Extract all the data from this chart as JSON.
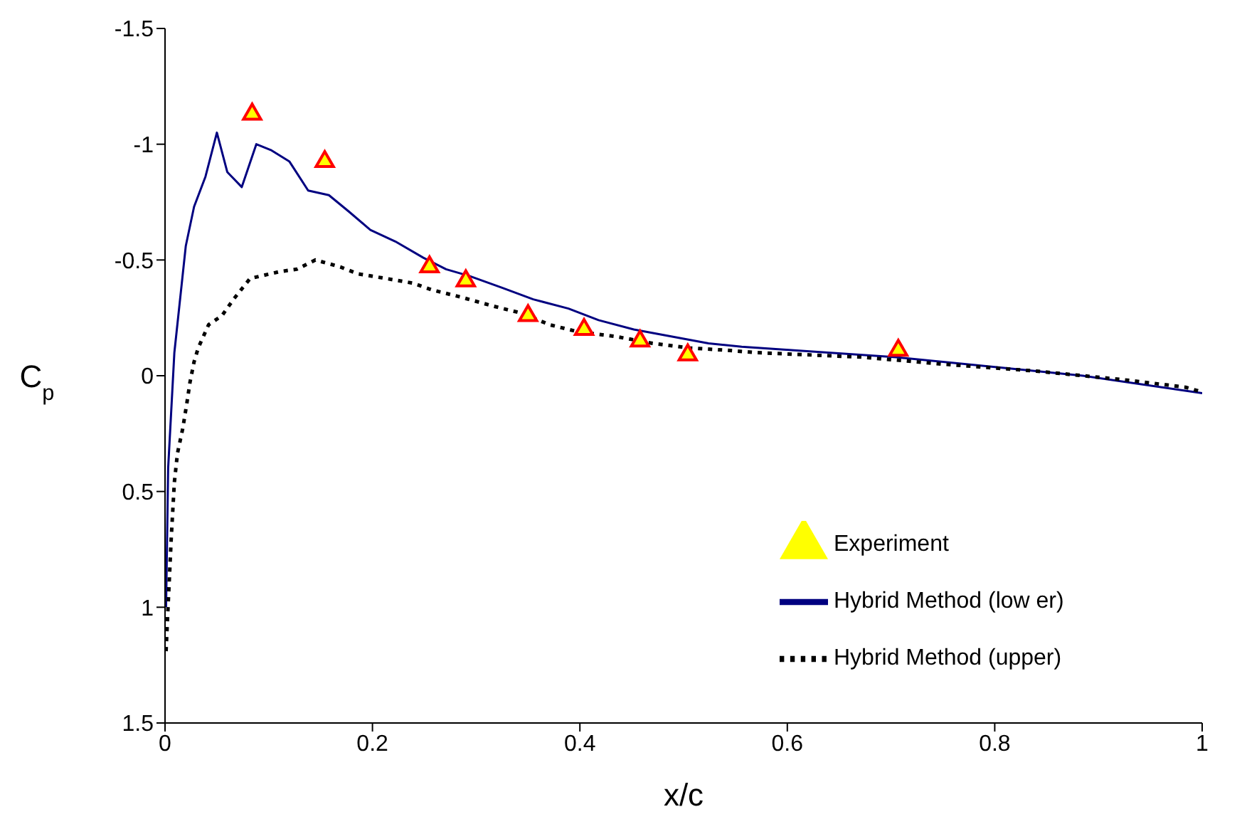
{
  "chart_data": {
    "type": "line",
    "xlabel": "x/c",
    "ylabel": "C$_{p}$",
    "xlim": [
      0,
      1
    ],
    "xticks": [
      0,
      0.2,
      0.4,
      0.6,
      0.8,
      1
    ],
    "ylim": [
      1.5,
      -1.5
    ],
    "yticks": [
      -1.5,
      -1,
      -0.5,
      0,
      0.5,
      1,
      1.5
    ],
    "grid": false,
    "legend": "bottom right",
    "series": [
      {
        "name": "Hybrid Method (low er)",
        "type": "line",
        "color": "#000080",
        "line_style": "solid",
        "marker": "none",
        "x": [
          0.001,
          0.003,
          0.009,
          0.02,
          0.028,
          0.039,
          0.05,
          0.06,
          0.074,
          0.088,
          0.102,
          0.12,
          0.138,
          0.158,
          0.177,
          0.198,
          0.222,
          0.249,
          0.271,
          0.294,
          0.325,
          0.355,
          0.389,
          0.418,
          0.452,
          0.488,
          0.524,
          0.556,
          0.705,
          0.795,
          0.885,
          1.0
        ],
        "values": [
          1.0,
          0.4,
          -0.1,
          -0.56,
          -0.73,
          -0.86,
          -1.05,
          -0.88,
          -0.815,
          -1.0,
          -0.975,
          -0.925,
          -0.8,
          -0.78,
          -0.71,
          -0.63,
          -0.58,
          -0.51,
          -0.46,
          -0.43,
          -0.38,
          -0.33,
          -0.29,
          -0.24,
          -0.2,
          -0.17,
          -0.14,
          -0.125,
          -0.08,
          -0.04,
          0.0,
          0.075
        ]
      },
      {
        "name": "Hybrid Method (upper)",
        "type": "line",
        "color": "#000000",
        "line_style": "dotted",
        "marker": "none",
        "x": [
          0.001,
          0.003,
          0.006,
          0.009,
          0.012,
          0.017,
          0.021,
          0.024,
          0.028,
          0.032,
          0.042,
          0.055,
          0.066,
          0.082,
          0.111,
          0.127,
          0.145,
          0.169,
          0.186,
          0.213,
          0.239,
          0.258,
          0.285,
          0.317,
          0.344,
          0.371,
          0.398,
          0.434,
          0.47,
          0.506,
          0.542,
          0.569,
          0.673,
          0.75,
          0.84,
          0.93,
          0.984,
          1.0
        ],
        "values": [
          1.19,
          0.99,
          0.7,
          0.46,
          0.335,
          0.23,
          0.12,
          0.03,
          -0.06,
          -0.12,
          -0.22,
          -0.26,
          -0.33,
          -0.42,
          -0.45,
          -0.46,
          -0.5,
          -0.47,
          -0.44,
          -0.42,
          -0.4,
          -0.37,
          -0.34,
          -0.3,
          -0.27,
          -0.22,
          -0.19,
          -0.17,
          -0.14,
          -0.12,
          -0.11,
          -0.1,
          -0.08,
          -0.05,
          -0.02,
          0.02,
          0.05,
          0.07
        ]
      },
      {
        "name": "Experiment",
        "type": "scatter",
        "color": "#ff0000",
        "marker": "triangle",
        "x": [
          0.084,
          0.154,
          0.255,
          0.29,
          0.35,
          0.404,
          0.458,
          0.504,
          0.707
        ],
        "values": [
          -1.13,
          -0.925,
          -0.47,
          -0.41,
          -0.26,
          -0.2,
          -0.15,
          -0.09,
          -0.11
        ]
      }
    ]
  }
}
